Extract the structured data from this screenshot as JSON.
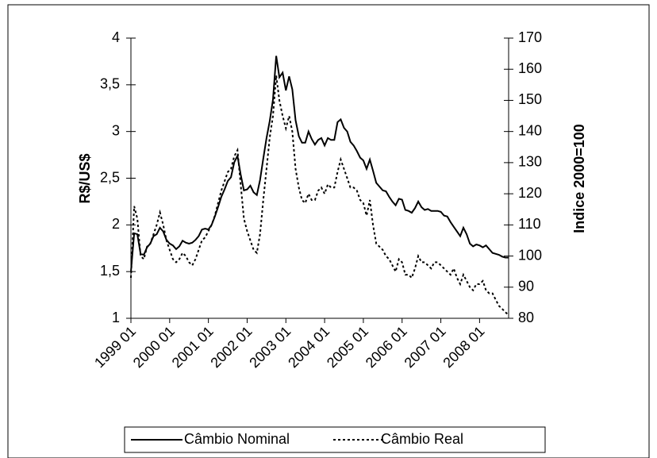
{
  "chart_data": {
    "type": "line",
    "y_label": "R$/US$",
    "y2_label": "Indice 2000=100",
    "legend": "bottom",
    "categories": [
      "1999 01",
      null,
      null,
      null,
      null,
      null,
      null,
      null,
      null,
      null,
      null,
      null,
      "2000 01",
      null,
      null,
      null,
      null,
      null,
      null,
      null,
      null,
      null,
      null,
      null,
      "2001 01",
      null,
      null,
      null,
      null,
      null,
      null,
      null,
      null,
      null,
      null,
      null,
      "2002 01",
      null,
      null,
      null,
      null,
      null,
      null,
      null,
      null,
      null,
      null,
      null,
      "2003 01",
      null,
      null,
      null,
      null,
      null,
      null,
      null,
      null,
      null,
      null,
      null,
      "2004 01",
      null,
      null,
      null,
      null,
      null,
      null,
      null,
      null,
      null,
      null,
      null,
      "2005 01",
      null,
      null,
      null,
      null,
      null,
      null,
      null,
      null,
      null,
      null,
      null,
      "2006 01",
      null,
      null,
      null,
      null,
      null,
      null,
      null,
      null,
      null,
      null,
      null,
      "2007 01",
      null,
      null,
      null,
      null,
      null,
      null,
      null,
      null,
      null,
      null,
      null,
      "2008 01",
      null,
      null,
      null,
      null,
      null,
      null,
      null,
      null,
      null
    ],
    "series": [
      {
        "name": "Câmbio Nominal",
        "color": "#000000",
        "dash": "solid",
        "values": [
          1.5,
          1.91,
          1.9,
          1.69,
          1.68,
          1.76,
          1.8,
          1.88,
          1.9,
          1.97,
          1.93,
          1.84,
          1.8,
          1.78,
          1.74,
          1.77,
          1.83,
          1.81,
          1.8,
          1.81,
          1.84,
          1.88,
          1.95,
          1.96,
          1.95,
          2.0,
          2.09,
          2.19,
          2.3,
          2.38,
          2.47,
          2.51,
          2.67,
          2.74,
          2.54,
          2.37,
          2.38,
          2.42,
          2.35,
          2.32,
          2.48,
          2.71,
          2.93,
          3.11,
          3.34,
          3.81,
          3.58,
          3.63,
          3.44,
          3.59,
          3.45,
          3.12,
          2.95,
          2.88,
          2.88,
          3.0,
          2.92,
          2.86,
          2.91,
          2.93,
          2.85,
          2.93,
          2.91,
          2.91,
          3.1,
          3.13,
          3.04,
          3.0,
          2.89,
          2.85,
          2.79,
          2.72,
          2.69,
          2.6,
          2.7,
          2.58,
          2.45,
          2.41,
          2.37,
          2.36,
          2.3,
          2.25,
          2.21,
          2.28,
          2.27,
          2.16,
          2.15,
          2.13,
          2.18,
          2.25,
          2.19,
          2.16,
          2.17,
          2.15,
          2.15,
          2.15,
          2.14,
          2.1,
          2.09,
          2.03,
          1.98,
          1.93,
          1.88,
          1.97,
          1.9,
          1.8,
          1.77,
          1.79,
          1.78,
          1.76,
          1.78,
          1.74,
          1.7,
          1.69,
          1.68,
          1.66,
          1.65,
          1.65
        ]
      },
      {
        "name": "Câmbio Real",
        "color": "#000000",
        "dash": "dotted",
        "axis": "y2",
        "values": [
          93,
          116,
          112,
          100,
          99,
          103,
          104,
          107,
          110,
          114,
          110,
          105,
          102,
          99,
          98,
          99,
          101,
          100,
          98,
          97,
          99,
          102,
          105,
          106,
          108,
          110,
          113,
          117,
          121,
          124,
          127,
          128,
          132,
          134,
          123,
          112,
          108,
          105,
          102,
          101,
          107,
          118,
          128,
          138,
          145,
          158,
          150,
          145,
          141,
          145,
          140,
          128,
          122,
          118,
          117,
          120,
          118,
          118,
          121,
          122,
          120,
          123,
          122,
          122,
          127,
          131,
          128,
          125,
          122,
          122,
          121,
          118,
          117,
          113,
          118,
          110,
          104,
          103,
          102,
          100,
          99,
          97,
          95,
          99,
          98,
          94,
          94,
          93,
          96,
          100,
          98,
          98,
          97,
          96,
          98,
          98,
          97,
          96,
          95,
          94,
          96,
          93,
          91,
          94,
          92,
          90,
          89,
          91,
          91,
          92,
          89,
          88,
          88,
          86,
          84,
          83,
          82,
          81
        ]
      }
    ],
    "ylim": [
      1,
      4
    ],
    "yticks": [
      1,
      {
        "value": 1.5,
        "label": "1,5"
      },
      2,
      {
        "value": 2.5,
        "label": "2,5"
      },
      3,
      {
        "value": 3.5,
        "label": "3,5"
      },
      4
    ],
    "y2lim": [
      80,
      170
    ],
    "y2ticks": [
      80,
      90,
      100,
      110,
      120,
      130,
      140,
      150,
      160,
      170
    ]
  }
}
